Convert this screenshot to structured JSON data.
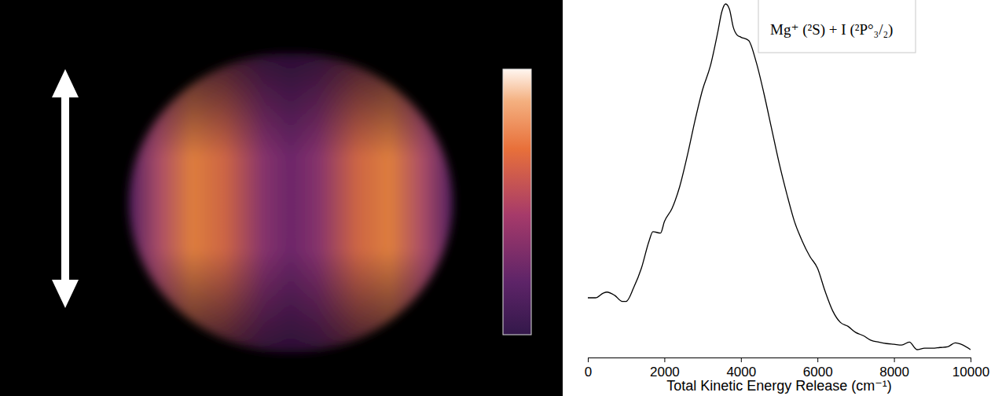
{
  "chart_data": {
    "type": "line",
    "x_label": "Total Kinetic Energy Release (cm⁻¹)",
    "annotations": [
      "Mg⁺ (²S) + I (²P°₃/₂)"
    ],
    "xlim": [
      0,
      10000
    ],
    "xticks": [
      0,
      2000,
      4000,
      6000,
      8000,
      10000
    ],
    "ylim": [
      0,
      1
    ],
    "tick_labels": "x",
    "color": "#000000",
    "x": [
      0,
      200,
      400,
      500,
      700,
      900,
      1000,
      1200,
      1400,
      1600,
      1700,
      1900,
      2000,
      2200,
      2400,
      2600,
      2800,
      3000,
      3200,
      3400,
      3500,
      3600,
      3700,
      3800,
      3900,
      4000,
      4200,
      4400,
      4600,
      4800,
      5000,
      5200,
      5400,
      5600,
      5800,
      6000,
      6200,
      6400,
      6600,
      6800,
      7000,
      7200,
      7400,
      7600,
      7800,
      8000,
      8200,
      8400,
      8600,
      8800,
      9000,
      9200,
      9400,
      9600,
      9800,
      10000
    ],
    "values": [
      0.167,
      0.167,
      0.18,
      0.183,
      0.174,
      0.157,
      0.157,
      0.196,
      0.25,
      0.326,
      0.352,
      0.348,
      0.38,
      0.417,
      0.478,
      0.565,
      0.663,
      0.75,
      0.815,
      0.913,
      0.967,
      0.989,
      0.974,
      0.924,
      0.902,
      0.896,
      0.887,
      0.826,
      0.739,
      0.641,
      0.543,
      0.457,
      0.38,
      0.326,
      0.283,
      0.25,
      0.185,
      0.13,
      0.098,
      0.087,
      0.07,
      0.061,
      0.048,
      0.043,
      0.039,
      0.037,
      0.035,
      0.043,
      0.022,
      0.026,
      0.026,
      0.028,
      0.03,
      0.041,
      0.035,
      0.022
    ]
  }
}
